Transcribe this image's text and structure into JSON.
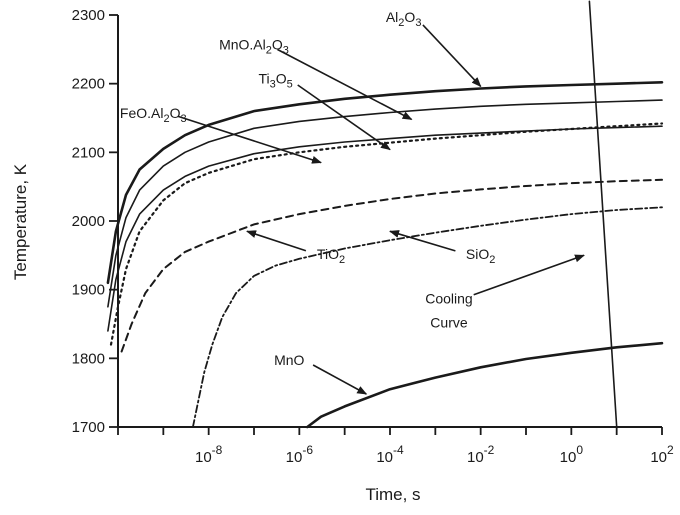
{
  "chart_data": {
    "type": "line",
    "xlabel": "Time, s",
    "ylabel": "Temperature, K",
    "xscale": "log",
    "xlim": [
      1e-10,
      100
    ],
    "ylim": [
      1700,
      2300
    ],
    "grid": false,
    "legend": "none",
    "x_ticks": [
      {
        "value": 1e-08,
        "base": "10",
        "exp": "-8"
      },
      {
        "value": 1e-06,
        "base": "10",
        "exp": "-6"
      },
      {
        "value": 0.0001,
        "base": "10",
        "exp": "-4"
      },
      {
        "value": 0.01,
        "base": "10",
        "exp": "-2"
      },
      {
        "value": 1,
        "base": "10",
        "exp": "0"
      },
      {
        "value": 100,
        "base": "10",
        "exp": "2"
      }
    ],
    "y_ticks": [
      1700,
      1800,
      1900,
      2000,
      2100,
      2200,
      2300
    ],
    "series": [
      {
        "style": "solid-thick",
        "x": [
          6e-11,
          9e-11,
          1.5e-10,
          3e-10,
          1e-09,
          3e-09,
          1e-08,
          1e-07,
          1e-06,
          1e-05,
          0.0001,
          0.001,
          0.01,
          0.1,
          1,
          10,
          100
        ],
        "y": [
          1910,
          1985,
          2038,
          2075,
          2105,
          2125,
          2140,
          2160,
          2170,
          2178,
          2184,
          2189,
          2193,
          2196,
          2198,
          2200,
          2202
        ]
      },
      {
        "style": "solid",
        "x": [
          6e-11,
          9e-11,
          1.5e-10,
          3e-10,
          1e-09,
          3e-09,
          1e-08,
          1e-07,
          1e-06,
          1e-05,
          0.0001,
          0.001,
          0.01,
          0.1,
          1,
          10,
          100
        ],
        "y": [
          1875,
          1950,
          2005,
          2045,
          2080,
          2100,
          2115,
          2135,
          2145,
          2152,
          2158,
          2163,
          2167,
          2170,
          2172,
          2174,
          2176
        ]
      },
      {
        "style": "solid",
        "x": [
          6e-11,
          9e-11,
          1.5e-10,
          3e-10,
          1e-09,
          3e-09,
          1e-08,
          1e-07,
          1e-06,
          1e-05,
          0.0001,
          0.001,
          0.01,
          0.1,
          1,
          10,
          100
        ],
        "y": [
          1840,
          1915,
          1970,
          2010,
          2045,
          2065,
          2080,
          2098,
          2108,
          2115,
          2120,
          2125,
          2128,
          2131,
          2134,
          2136,
          2138
        ]
      },
      {
        "style": "dotted",
        "x": [
          7e-11,
          1e-10,
          1.5e-10,
          3e-10,
          1e-09,
          3e-09,
          1e-08,
          1e-07,
          1e-06,
          1e-05,
          0.0001,
          0.001,
          0.01,
          0.1,
          1,
          10,
          100
        ],
        "y": [
          1820,
          1875,
          1930,
          1985,
          2030,
          2055,
          2070,
          2090,
          2100,
          2108,
          2114,
          2120,
          2125,
          2130,
          2134,
          2138,
          2142
        ]
      },
      {
        "style": "dashed",
        "x": [
          1.2e-10,
          2e-10,
          4e-10,
          1e-09,
          3e-09,
          1e-08,
          1e-07,
          1e-06,
          1e-05,
          0.0001,
          0.001,
          0.01,
          0.1,
          1,
          10,
          100
        ],
        "y": [
          1810,
          1850,
          1895,
          1930,
          1955,
          1970,
          1995,
          2010,
          2022,
          2032,
          2040,
          2046,
          2051,
          2055,
          2058,
          2060
        ]
      },
      {
        "style": "dash-dot",
        "x": [
          4.5e-09,
          6e-09,
          8e-09,
          1.2e-08,
          2e-08,
          4e-08,
          1e-07,
          3e-07,
          1e-06,
          1e-05,
          0.0001,
          0.001,
          0.01,
          0.1,
          1,
          10,
          100
        ],
        "y": [
          1700,
          1740,
          1780,
          1820,
          1860,
          1895,
          1920,
          1935,
          1945,
          1960,
          1972,
          1983,
          1993,
          2002,
          2010,
          2016,
          2020
        ]
      },
      {
        "style": "solid-thick",
        "x": [
          1.5e-06,
          3e-06,
          1e-05,
          0.0001,
          0.001,
          0.01,
          0.1,
          1,
          10,
          100
        ],
        "y": [
          1700,
          1715,
          1730,
          1755,
          1772,
          1787,
          1799,
          1808,
          1816,
          1822
        ]
      },
      {
        "style": "solid",
        "x": [
          2.5,
          10
        ],
        "y": [
          2320,
          1700
        ]
      }
    ],
    "annotations": [
      {
        "parts": [
          {
            "t": "Al"
          },
          {
            "t": "2",
            "sub": true
          },
          {
            "t": "O"
          },
          {
            "t": "3",
            "sub": true
          }
        ],
        "label_at": [
          0.0002,
          2290
        ],
        "arrow_to": [
          0.01,
          2196
        ]
      },
      {
        "parts": [
          {
            "t": "MnO.Al"
          },
          {
            "t": "2",
            "sub": true
          },
          {
            "t": "O"
          },
          {
            "t": "3",
            "sub": true
          }
        ],
        "label_at": [
          1e-07,
          2250
        ],
        "arrow_to": [
          0.0003,
          2148
        ]
      },
      {
        "parts": [
          {
            "t": "Ti"
          },
          {
            "t": "3",
            "sub": true
          },
          {
            "t": "O"
          },
          {
            "t": "5",
            "sub": true
          }
        ],
        "label_at": [
          3e-07,
          2200
        ],
        "arrow_to": [
          0.0001,
          2104
        ]
      },
      {
        "parts": [
          {
            "t": "FeO.Al"
          },
          {
            "t": "2",
            "sub": true
          },
          {
            "t": "O"
          },
          {
            "t": "3",
            "sub": true
          }
        ],
        "label_at": [
          6e-10,
          2150
        ],
        "arrow_to": [
          3e-06,
          2085
        ]
      },
      {
        "parts": [
          {
            "t": "TiO"
          },
          {
            "t": "2",
            "sub": true
          }
        ],
        "label_at": [
          5e-06,
          1945
        ],
        "arrow_to": [
          7e-08,
          1985
        ]
      },
      {
        "parts": [
          {
            "t": "SiO"
          },
          {
            "t": "2",
            "sub": true
          }
        ],
        "label_at": [
          0.01,
          1945
        ],
        "arrow_to": [
          0.0001,
          1985
        ]
      },
      {
        "parts": [
          {
            "t": "Cooling"
          }
        ],
        "label_at": [
          0.002,
          1880
        ],
        "arrow_to": [
          1.9,
          1950
        ]
      },
      {
        "parts": [
          {
            "t": "Curve"
          }
        ],
        "label_at": [
          0.002,
          1845
        ],
        "arrow_to": null
      },
      {
        "parts": [
          {
            "t": "MnO"
          }
        ],
        "label_at": [
          6e-07,
          1790
        ],
        "arrow_to": [
          3e-05,
          1748
        ]
      }
    ]
  }
}
